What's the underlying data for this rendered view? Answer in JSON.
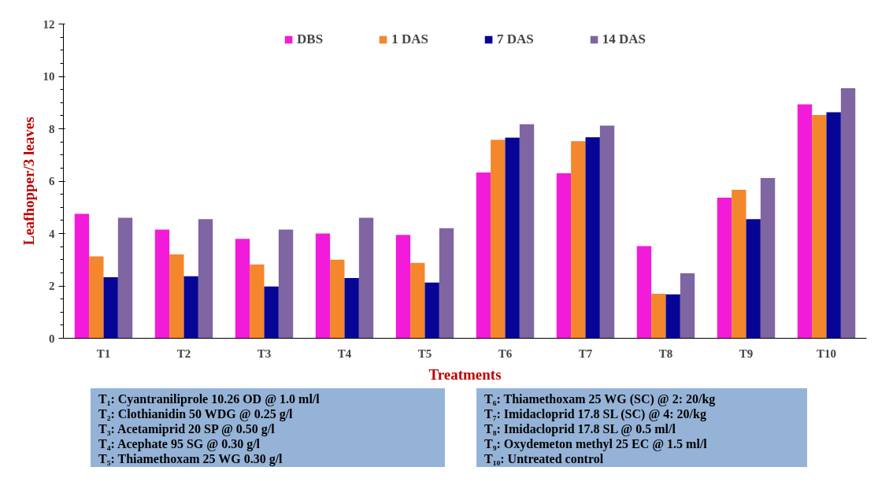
{
  "chart_data": {
    "type": "bar",
    "xlabel": "Treatments",
    "ylabel": "Leafhopper/3 leaves",
    "categories": [
      "T1",
      "T2",
      "T3",
      "T4",
      "T5",
      "T6",
      "T7",
      "T8",
      "T9",
      "T10"
    ],
    "series": [
      {
        "name": "DBS",
        "color": "#f21bd9",
        "values": [
          4.75,
          4.15,
          3.8,
          4.0,
          3.95,
          6.33,
          6.3,
          3.52,
          5.37,
          8.93
        ]
      },
      {
        "name": "1 DAS",
        "color": "#f4862c",
        "values": [
          3.13,
          3.2,
          2.82,
          3.0,
          2.88,
          7.58,
          7.53,
          1.7,
          5.67,
          8.53
        ]
      },
      {
        "name": "7 DAS",
        "color": "#070595",
        "values": [
          2.33,
          2.37,
          1.98,
          2.3,
          2.13,
          7.66,
          7.68,
          1.68,
          4.55,
          8.63
        ]
      },
      {
        "name": "14 DAS",
        "color": "#7f65a2",
        "values": [
          4.6,
          4.55,
          4.15,
          4.6,
          4.2,
          8.17,
          8.12,
          2.48,
          6.12,
          9.55
        ]
      }
    ],
    "ylim": [
      0,
      12
    ],
    "yticks": [
      0,
      2,
      4,
      6,
      8,
      10,
      12
    ],
    "grid": false,
    "legend": "top",
    "annotations": [
      "T₁: Cyantraniliprole 10.26 OD @ 1.0 ml/l",
      "T₂: Clothianidin 50 WDG @ 0.25 g/l",
      "T₃: Acetamiprid 20 SP @ 0.50 g/l",
      "T₄: Acephate 95 SG @ 0.30 g/l",
      "T₅: Thiamethoxam 25 WG 0.30 g/l",
      "T₆: Thiamethoxam 25 WG (SC) @ 2: 20/kg",
      "T₇: Imidacloprid 17.8 SL (SC) @ 4: 20/kg",
      "T₈: Imidacloprid 17.8 SL @ 0.5 ml/l",
      "T₉: Oxydemeton methyl 25 EC @ 1.5 ml/l",
      "T₁₀: Untreated control"
    ]
  }
}
